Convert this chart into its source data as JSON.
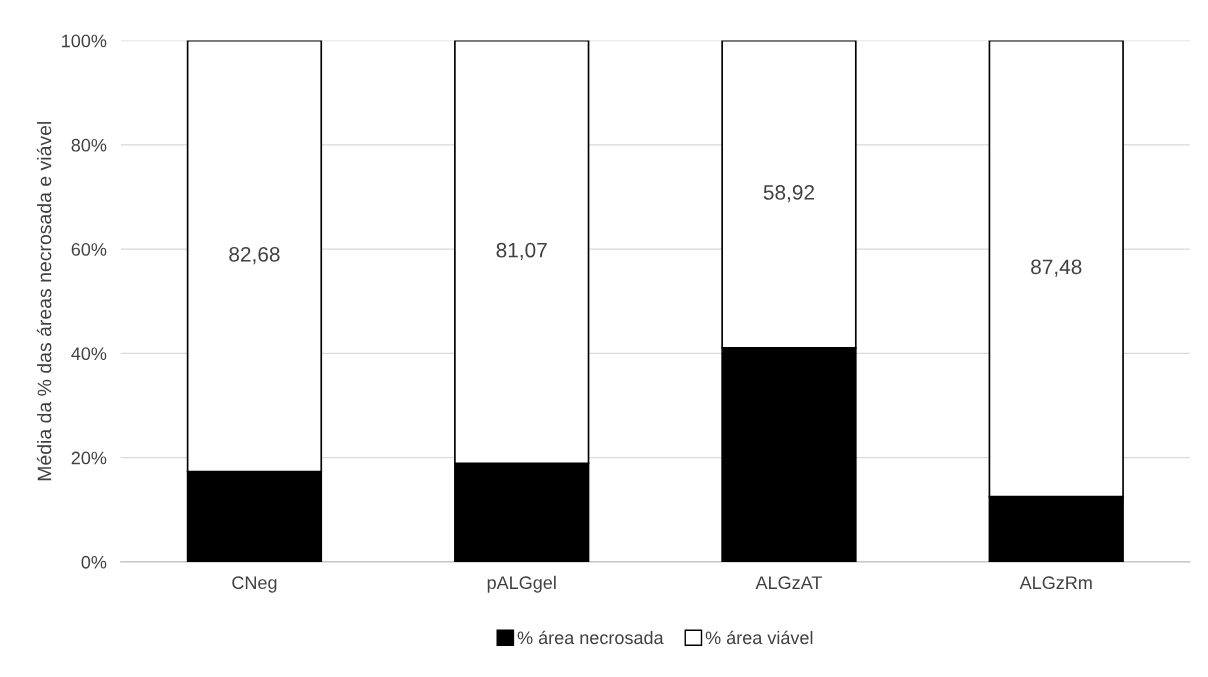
{
  "chart_data": {
    "type": "bar",
    "stacked": true,
    "ylabel": "Média da % das áreas necrosada e viável",
    "categories": [
      "CNeg",
      "pALGgel",
      "ALGzAT",
      "ALGzRm"
    ],
    "series": [
      {
        "name": "% área necrosada",
        "color": "#000000",
        "values": [
          17.32,
          18.93,
          41.08,
          12.52
        ]
      },
      {
        "name": "% área viável",
        "color": "#ffffff",
        "values": [
          82.68,
          81.07,
          58.92,
          87.48
        ],
        "value_labels": [
          "82,68",
          "81,07",
          "58,92",
          "87,48"
        ]
      }
    ],
    "ylim": [
      0,
      100
    ],
    "yticks": [
      {
        "value": 0,
        "label": "0%"
      },
      {
        "value": 20,
        "label": "20%"
      },
      {
        "value": 40,
        "label": "40%"
      },
      {
        "value": 60,
        "label": "60%"
      },
      {
        "value": 80,
        "label": "80%"
      },
      {
        "value": 100,
        "label": "100%"
      }
    ],
    "grid": "y",
    "legend": "bottom"
  }
}
